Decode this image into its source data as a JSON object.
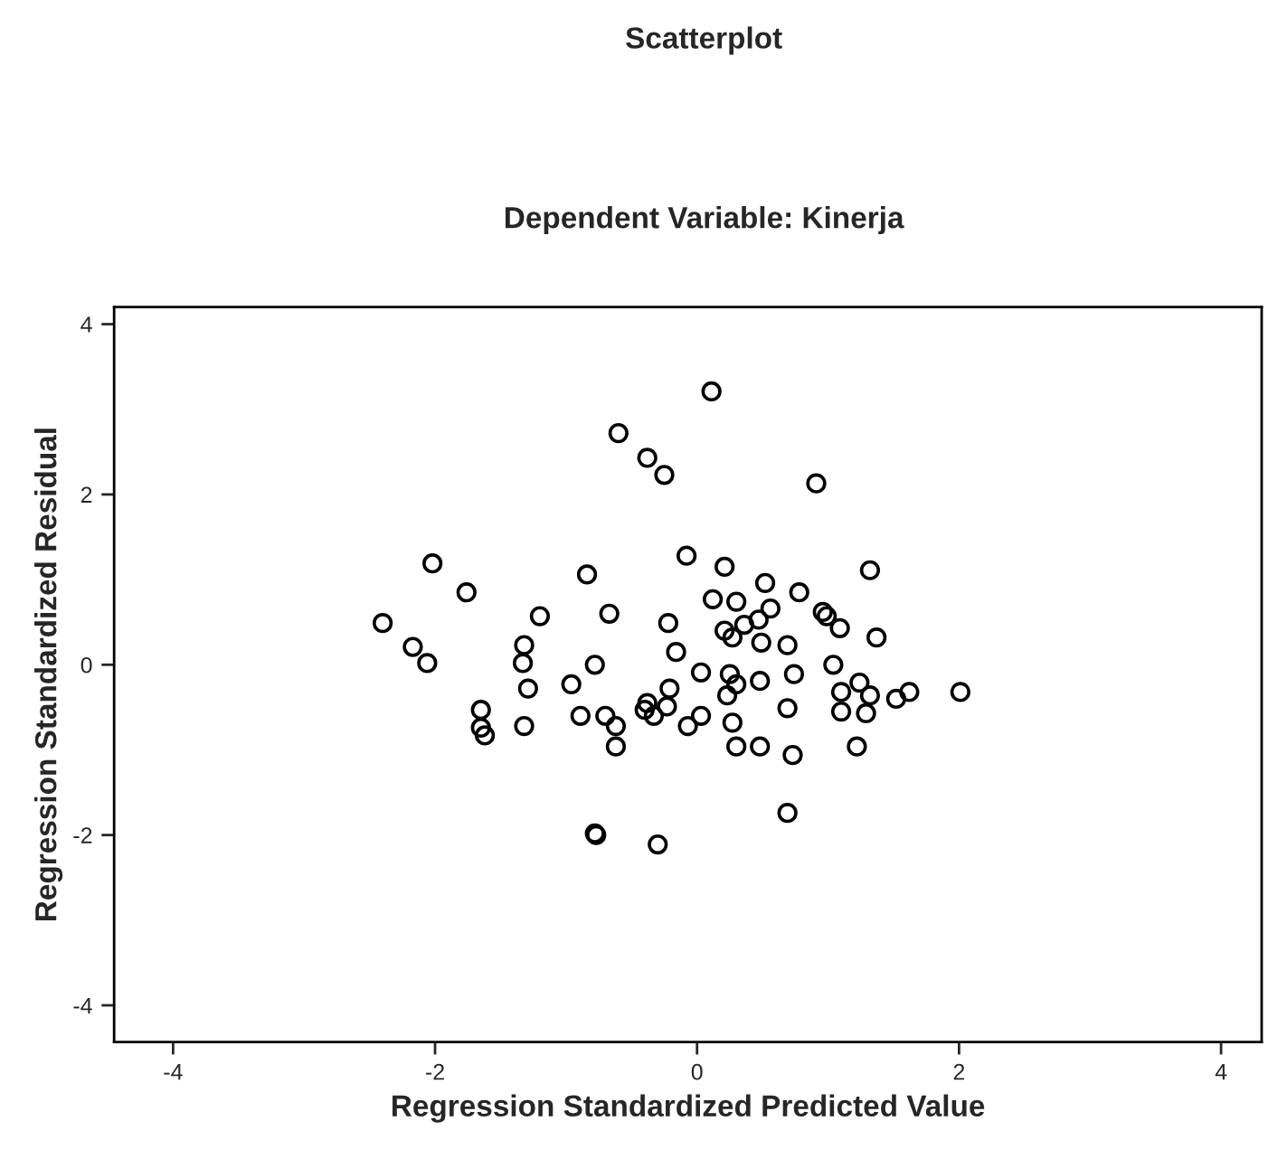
{
  "chart_data": {
    "type": "scatter",
    "title": "Scatterplot",
    "subtitle": "Dependent Variable: Kinerja",
    "xlabel": "Regression Standardized Predicted Value",
    "ylabel": "Regression Standardized Residual",
    "x": [
      -2.4,
      -2.17,
      -2.06,
      -2.02,
      -1.76,
      -1.65,
      -1.65,
      -1.62,
      -1.33,
      -1.32,
      -1.29,
      -1.32,
      -1.2,
      -0.96,
      -0.89,
      -0.84,
      -0.78,
      -0.78,
      -0.77,
      -0.7,
      -0.67,
      -0.62,
      -0.62,
      -0.6,
      -0.4,
      -0.38,
      -0.25,
      -0.33,
      -0.38,
      -0.23,
      -0.3,
      -0.22,
      -0.21,
      -0.16,
      -0.08,
      -0.07,
      0.03,
      0.03,
      0.11,
      0.12,
      0.21,
      0.21,
      0.23,
      0.25,
      0.27,
      0.27,
      0.3,
      0.3,
      0.3,
      0.36,
      0.47,
      0.48,
      0.48,
      0.49,
      0.52,
      0.56,
      0.69,
      0.69,
      0.69,
      0.74,
      0.73,
      0.78,
      0.91,
      0.96,
      0.99,
      1.09,
      1.04,
      1.1,
      1.1,
      1.24,
      1.22,
      1.32,
      1.32,
      1.29,
      1.37,
      1.52,
      1.62,
      2.01
    ],
    "series": [
      {
        "color": "#000000",
        "values": [
          0.49,
          0.21,
          0.02,
          1.19,
          0.85,
          -0.53,
          -0.74,
          -0.83,
          0.02,
          0.23,
          -0.28,
          -0.72,
          0.57,
          -0.23,
          -0.6,
          1.06,
          0.0,
          -1.98,
          -2.0,
          -0.6,
          0.6,
          -0.72,
          -0.96,
          2.72,
          -0.53,
          2.43,
          2.23,
          -0.6,
          -0.45,
          -0.49,
          -2.11,
          0.49,
          -0.28,
          0.15,
          1.28,
          -0.72,
          -0.6,
          -0.09,
          3.21,
          0.77,
          1.15,
          0.4,
          -0.36,
          -0.11,
          0.32,
          -0.68,
          0.74,
          -0.23,
          -0.96,
          0.47,
          0.53,
          -0.19,
          -0.96,
          0.26,
          0.96,
          0.66,
          0.23,
          -0.51,
          -1.74,
          -0.11,
          -1.06,
          0.85,
          2.13,
          0.62,
          0.57,
          0.43,
          0.0,
          -0.32,
          -0.55,
          -0.21,
          -0.96,
          1.11,
          -0.36,
          -0.57,
          0.32,
          -0.4,
          -0.32,
          -0.32
        ]
      }
    ],
    "xlim": [
      -4.45,
      4.31
    ],
    "ylim": [
      -4.43,
      4.2
    ],
    "xticks": [
      -4,
      -2,
      0,
      2,
      4
    ],
    "yticks": [
      -4,
      -2,
      0,
      2,
      4
    ],
    "marker": "circle",
    "grid": false
  }
}
